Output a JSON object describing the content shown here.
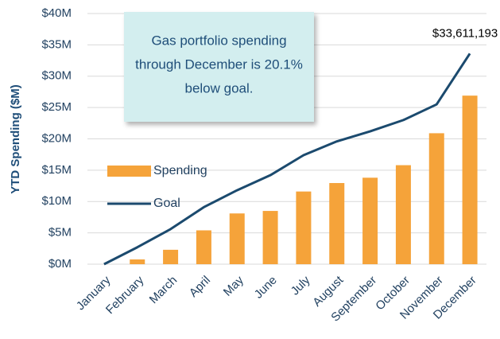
{
  "chart_data": {
    "type": "bar",
    "annotation": [
      "Gas portfolio spending",
      "through December is 20.1%",
      "below goal."
    ],
    "ylabel": "YTD Spending ($M)",
    "categories": [
      "January",
      "February",
      "March",
      "April",
      "May",
      "June",
      "July",
      "August",
      "September",
      "October",
      "November",
      "December"
    ],
    "series": [
      {
        "name": "Spending",
        "type": "bar",
        "color": "#f5a33a",
        "values": [
          0,
          0.76,
          2.3,
          5.4,
          8.1,
          8.5,
          11.6,
          12.95,
          13.8,
          15.8,
          20.9,
          26.9
        ]
      },
      {
        "name": "Goal",
        "type": "line",
        "color": "#1b4a6e",
        "values": [
          0,
          2.7,
          5.6,
          9.1,
          11.8,
          14.2,
          17.4,
          19.6,
          21.2,
          23.0,
          25.5,
          33.611193
        ],
        "value_labels": [
          null,
          null,
          null,
          null,
          null,
          null,
          null,
          null,
          null,
          null,
          null,
          "$33,611,193"
        ]
      }
    ],
    "ylim": [
      0,
      40
    ],
    "yticks": [
      {
        "value": 0,
        "label": "$0M"
      },
      {
        "value": 5,
        "label": "$5M"
      },
      {
        "value": 10,
        "label": "$10M"
      },
      {
        "value": 15,
        "label": "$15M"
      },
      {
        "value": 20,
        "label": "$20M"
      },
      {
        "value": 25,
        "label": "$25M"
      },
      {
        "value": 30,
        "label": "$30M"
      },
      {
        "value": 35,
        "label": "$35M"
      },
      {
        "value": 40,
        "label": "$40M"
      }
    ],
    "grid": true,
    "legend": "left"
  }
}
